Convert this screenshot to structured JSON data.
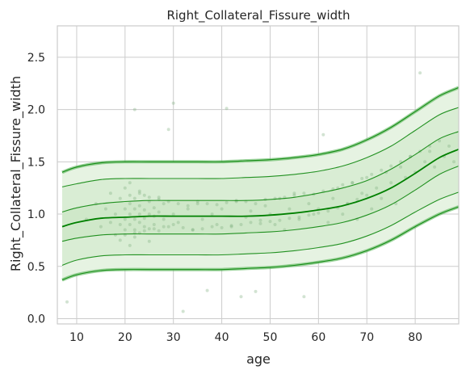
{
  "chart_data": {
    "type": "line",
    "title": "Right_Collateral_Fissure_width",
    "xlabel": "age",
    "ylabel": "Right_Collateral_Fissure_width",
    "xlim": [
      6,
      89
    ],
    "ylim": [
      -0.05,
      2.8
    ],
    "xticks": [
      10,
      20,
      30,
      40,
      50,
      60,
      70,
      80
    ],
    "yticks": [
      0.0,
      0.5,
      1.0,
      1.5,
      2.0,
      2.5
    ],
    "grid": true,
    "colors": {
      "line": "#008000",
      "band_light": "#e6f3e2",
      "band_mid": "#cfe8c9",
      "points": "#7fb07f",
      "grid": "#cccccc",
      "frame": "#cccccc"
    },
    "x": [
      7,
      10,
      15,
      20,
      25,
      30,
      35,
      40,
      45,
      50,
      55,
      60,
      65,
      70,
      75,
      80,
      85,
      89
    ],
    "series": [
      {
        "values": [
          0.37,
          0.42,
          0.46,
          0.47,
          0.47,
          0.47,
          0.47,
          0.47,
          0.48,
          0.49,
          0.51,
          0.54,
          0.58,
          0.65,
          0.75,
          0.88,
          1.0,
          1.07
        ]
      },
      {
        "values": [
          0.51,
          0.56,
          0.6,
          0.61,
          0.61,
          0.61,
          0.61,
          0.61,
          0.62,
          0.63,
          0.65,
          0.68,
          0.72,
          0.79,
          0.89,
          1.02,
          1.14,
          1.21
        ]
      },
      {
        "values": [
          0.74,
          0.77,
          0.8,
          0.81,
          0.81,
          0.81,
          0.81,
          0.81,
          0.82,
          0.83,
          0.85,
          0.88,
          0.92,
          0.99,
          1.09,
          1.23,
          1.38,
          1.46
        ]
      },
      {
        "values": [
          0.88,
          0.92,
          0.96,
          0.97,
          0.98,
          0.98,
          0.98,
          0.98,
          0.98,
          0.99,
          1.01,
          1.04,
          1.08,
          1.15,
          1.25,
          1.39,
          1.54,
          1.62
        ]
      },
      {
        "values": [
          1.02,
          1.06,
          1.1,
          1.12,
          1.13,
          1.13,
          1.13,
          1.13,
          1.13,
          1.14,
          1.16,
          1.2,
          1.25,
          1.32,
          1.43,
          1.57,
          1.72,
          1.79
        ]
      },
      {
        "values": [
          1.26,
          1.29,
          1.33,
          1.34,
          1.34,
          1.34,
          1.34,
          1.34,
          1.35,
          1.36,
          1.38,
          1.41,
          1.46,
          1.54,
          1.65,
          1.8,
          1.95,
          2.02
        ]
      },
      {
        "values": [
          1.4,
          1.45,
          1.49,
          1.5,
          1.5,
          1.5,
          1.5,
          1.5,
          1.51,
          1.52,
          1.54,
          1.57,
          1.62,
          1.71,
          1.83,
          1.98,
          2.13,
          2.21
        ]
      }
    ],
    "scatter": {
      "x": [
        8,
        12,
        14,
        15,
        16,
        17,
        17,
        18,
        18,
        19,
        19,
        19,
        20,
        20,
        20,
        20,
        21,
        21,
        21,
        21,
        21,
        22,
        22,
        22,
        22,
        22,
        22,
        23,
        23,
        23,
        23,
        23,
        24,
        24,
        24,
        24,
        25,
        25,
        25,
        25,
        26,
        26,
        26,
        27,
        27,
        27,
        28,
        28,
        29,
        29,
        30,
        30,
        31,
        32,
        33,
        34,
        35,
        36,
        37,
        38,
        39,
        40,
        41,
        42,
        43,
        44,
        45,
        46,
        47,
        48,
        49,
        50,
        51,
        52,
        53,
        54,
        55,
        56,
        57,
        58,
        59,
        60,
        61,
        62,
        63,
        64,
        65,
        66,
        67,
        68,
        69,
        70,
        71,
        72,
        73,
        74,
        75,
        76,
        77,
        78,
        79,
        80,
        81,
        82,
        83,
        84,
        85,
        86,
        87,
        88,
        20,
        22,
        24,
        26,
        28,
        30,
        32,
        34,
        36,
        38,
        40,
        42,
        44,
        46,
        48,
        50,
        52,
        54,
        56,
        58,
        60,
        62,
        64,
        66,
        68,
        70,
        21,
        23,
        25,
        27,
        29,
        31,
        33,
        35,
        37,
        39,
        41,
        43,
        45,
        47,
        49,
        51,
        53,
        55,
        57,
        59,
        61,
        63,
        65,
        67,
        69,
        71,
        73,
        75,
        77,
        79,
        81,
        83
      ],
      "y": [
        0.16,
        0.95,
        1.1,
        0.88,
        1.05,
        0.92,
        1.2,
        0.8,
        1.0,
        0.9,
        1.15,
        0.75,
        0.95,
        1.05,
        0.85,
        1.25,
        1.0,
        0.9,
        1.1,
        0.7,
        1.3,
        0.95,
        1.05,
        0.85,
        1.15,
        0.78,
        2.0,
        1.0,
        0.92,
        1.08,
        0.82,
        1.22,
        0.96,
        1.04,
        0.88,
        1.18,
        1.0,
        0.86,
        1.12,
        0.74,
        0.98,
        1.06,
        0.9,
        1.02,
        0.84,
        1.16,
        0.95,
        1.1,
        0.88,
        1.81,
        1.0,
        2.06,
        0.92,
        0.07,
        1.05,
        0.85,
        1.1,
        0.95,
        0.27,
        1.0,
        0.9,
        1.05,
        2.01,
        0.88,
        1.12,
        0.21,
        0.97,
        1.03,
        0.26,
        0.94,
        1.08,
        1.0,
        0.9,
        1.15,
        0.85,
        1.05,
        1.2,
        0.95,
        0.21,
        1.1,
        1.0,
        1.05,
        1.76,
        0.92,
        1.15,
        1.25,
        1.0,
        1.1,
        1.3,
        0.95,
        1.2,
        1.35,
        1.05,
        1.25,
        1.15,
        1.4,
        1.3,
        1.1,
        1.45,
        1.35,
        1.55,
        1.4,
        2.35,
        1.5,
        1.6,
        1.45,
        1.7,
        1.55,
        1.65,
        1.5,
        0.8,
        0.82,
        0.84,
        0.86,
        0.88,
        0.9,
        0.87,
        0.85,
        0.86,
        0.88,
        0.87,
        0.89,
        0.9,
        0.92,
        0.91,
        0.93,
        0.94,
        0.96,
        0.97,
        0.99,
        1.01,
        1.03,
        1.06,
        1.1,
        1.14,
        1.18,
        1.18,
        1.2,
        1.16,
        1.14,
        1.12,
        1.1,
        1.08,
        1.12,
        1.1,
        1.09,
        1.11,
        1.13,
        1.12,
        1.1,
        1.14,
        1.15,
        1.16,
        1.18,
        1.2,
        1.19,
        1.22,
        1.24,
        1.28,
        1.3,
        1.34,
        1.38,
        1.42,
        1.46,
        1.5,
        1.55,
        1.6,
        1.65
      ]
    }
  }
}
